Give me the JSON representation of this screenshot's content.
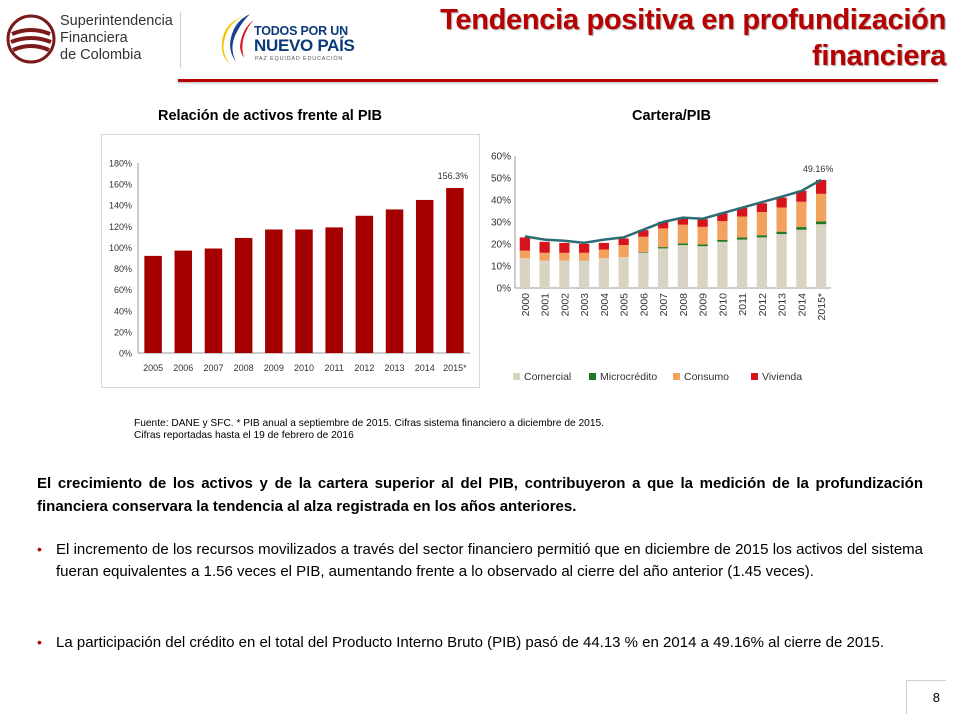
{
  "header": {
    "sfc_logo_lines": [
      "Superintendencia",
      "Financiera",
      "de Colombia"
    ],
    "gov_logo": {
      "line1": "TODOS POR UN",
      "line2": "NUEVO PAÍS",
      "line3": "PAZ  EQUIDAD  EDUCACIÓN"
    },
    "title_line1": "Tendencia positiva en profundización",
    "title_line2": "financiera"
  },
  "charts": {
    "left_title": "Relación de activos frente al PIB",
    "right_title": "Cartera/PIB"
  },
  "colors": {
    "title_red": "#b70000",
    "bar_red": "#a50000",
    "comercial": "#d9d3c3",
    "microcredito": "#1e7a22",
    "consumo": "#f3a25e",
    "vivienda": "#d7141b",
    "total_line": "#2d6c73"
  },
  "chart_data": [
    {
      "type": "bar",
      "title": "Relación de activos frente al PIB",
      "categories": [
        "2005",
        "2006",
        "2007",
        "2008",
        "2009",
        "2010",
        "2011",
        "2012",
        "2013",
        "2014",
        "2015*"
      ],
      "values": [
        92,
        97,
        99,
        109,
        117,
        117,
        119,
        130,
        136,
        145,
        156.3
      ],
      "data_labels": [
        {
          "index": 10,
          "text": "156.3%"
        }
      ],
      "ylim": [
        0,
        180
      ],
      "y_ticks": [
        "0%",
        "20%",
        "40%",
        "60%",
        "80%",
        "100%",
        "120%",
        "140%",
        "160%",
        "180%"
      ],
      "grid": false,
      "xlabel": "",
      "ylabel": ""
    },
    {
      "type": "bar",
      "stacked": true,
      "title": "Cartera/PIB",
      "categories": [
        "2000",
        "2001",
        "2002",
        "2003",
        "2004",
        "2005",
        "2006",
        "2007",
        "2008",
        "2009",
        "2010",
        "2011",
        "2012",
        "2013",
        "2014",
        "2015*"
      ],
      "series": [
        {
          "name": "Comercial",
          "values": [
            13.5,
            12.5,
            12.5,
            12.5,
            13.5,
            14,
            16,
            18,
            19.5,
            19,
            21,
            22,
            23,
            24.5,
            26.5,
            29
          ]
        },
        {
          "name": "Microcrédito",
          "values": [
            0,
            0,
            0,
            0,
            0,
            0,
            0.3,
            0.6,
            0.8,
            0.8,
            0.9,
            1,
            1,
            1.1,
            1.2,
            1.3
          ]
        },
        {
          "name": "Consumo",
          "values": [
            3.5,
            3.5,
            3.5,
            3.5,
            4,
            5.5,
            7,
            8.5,
            8.5,
            8,
            8.5,
            9.5,
            10.5,
            11,
            11.5,
            12.5
          ]
        },
        {
          "name": "Vivienda",
          "values": [
            6,
            5,
            4.5,
            4,
            3,
            3,
            3,
            3,
            3,
            3.5,
            3.5,
            4,
            4,
            4.5,
            5,
            6.3
          ]
        }
      ],
      "total_line": [
        23.5,
        22,
        21.5,
        20.5,
        22,
        23,
        26.5,
        30,
        32,
        31.5,
        34,
        36.5,
        39,
        41.5,
        44.13,
        49.16
      ],
      "data_labels": [
        {
          "index": 15,
          "text": "49.16%"
        }
      ],
      "ylim": [
        0,
        60
      ],
      "y_ticks": [
        "0%",
        "10%",
        "20%",
        "30%",
        "40%",
        "50%",
        "60%"
      ],
      "grid": false,
      "legend": "bottom",
      "xlabel": "",
      "ylabel": ""
    }
  ],
  "source_note": "Fuente: DANE y SFC. * PIB anual a septiembre  de 2015. Cifras sistema financiero a diciembre de 2015. Cifras reportadas hasta el 19 de febrero de 2016",
  "body": {
    "lead": "El crecimiento de los activos y de la cartera superior al del PIB, contribuyeron a que la medición de la profundización financiera conservara la tendencia al alza registrada en los años anteriores.",
    "bullets": [
      "El incremento de los recursos movilizados a través del sector financiero permitió que en diciembre de 2015 los activos del sistema fueran equivalentes a 1.56 veces el PIB, aumentando frente a lo observado al cierre del año anterior (1.45 veces).",
      "La participación del crédito en el total del Producto Interno Bruto (PIB) pasó de 44.13 % en 2014 a 49.16% al cierre de 2015."
    ],
    "bullet_symbol": "•"
  },
  "page_number": "8"
}
